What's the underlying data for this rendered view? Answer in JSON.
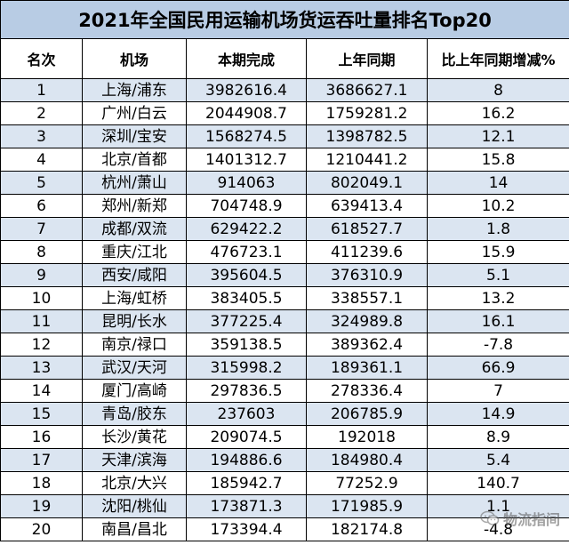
{
  "title": "2021年全国民用运输机场货运吞吐量排名Top20",
  "headers": [
    "名次",
    "机场",
    "本期完成",
    "上年同期",
    "比上年同期增减%"
  ],
  "rows": [
    [
      "1",
      "上海/浦东",
      "3982616.4",
      "3686627.1",
      "8"
    ],
    [
      "2",
      "广州/白云",
      "2044908.7",
      "1759281.2",
      "16.2"
    ],
    [
      "3",
      "深圳/宝安",
      "1568274.5",
      "1398782.5",
      "12.1"
    ],
    [
      "4",
      "北京/首都",
      "1401312.7",
      "1210441.2",
      "15.8"
    ],
    [
      "5",
      "杭州/萧山",
      "914063",
      "802049.1",
      "14"
    ],
    [
      "6",
      "郑州/新郑",
      "704748.9",
      "639413.4",
      "10.2"
    ],
    [
      "7",
      "成都/双流",
      "629422.2",
      "618527.7",
      "1.8"
    ],
    [
      "8",
      "重庆/江北",
      "476723.1",
      "411239.6",
      "15.9"
    ],
    [
      "9",
      "西安/咸阳",
      "395604.5",
      "376310.9",
      "5.1"
    ],
    [
      "10",
      "上海/虹桥",
      "383405.5",
      "338557.1",
      "13.2"
    ],
    [
      "11",
      "昆明/长水",
      "377225.4",
      "324989.8",
      "16.1"
    ],
    [
      "12",
      "南京/禄口",
      "359138.5",
      "389362.4",
      "-7.8"
    ],
    [
      "13",
      "武汉/天河",
      "315998.2",
      "189361.1",
      "66.9"
    ],
    [
      "14",
      "厦门/高崎",
      "297836.5",
      "278336.4",
      "7"
    ],
    [
      "15",
      "青岛/胶东",
      "237603",
      "206785.9",
      "14.9"
    ],
    [
      "16",
      "长沙/黄花",
      "209074.5",
      "192018",
      "8.9"
    ],
    [
      "17",
      "天津/滨海",
      "194886.6",
      "184980.4",
      "5.4"
    ],
    [
      "18",
      "北京/大兴",
      "185942.7",
      "77252.9",
      "140.7"
    ],
    [
      "19",
      "沈阳/桃仙",
      "173871.3",
      "171985.9",
      "1.1"
    ],
    [
      "20",
      "南昌/昌北",
      "173394.4",
      "182174.8",
      "-4.8"
    ]
  ],
  "watermark": {
    "text": "物流指间",
    "icon": "wechat-icon"
  }
}
